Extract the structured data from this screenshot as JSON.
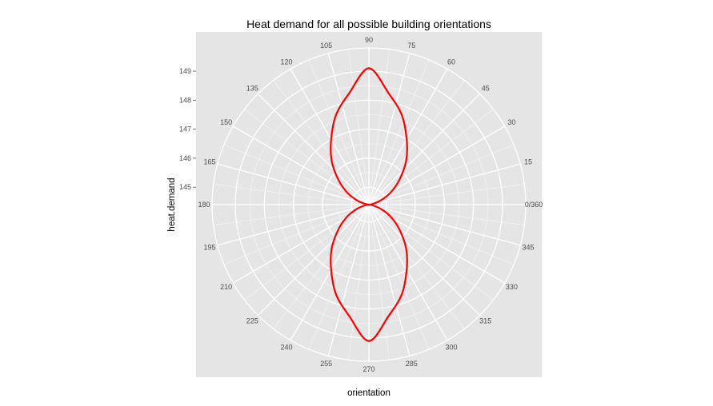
{
  "chart_data": {
    "type": "line",
    "coord": "polar",
    "title": "Heat demand for all possible building orientations",
    "xlabel": "orientation",
    "ylabel": "heat.demand",
    "angle_ticks": [
      "0/360",
      "15",
      "30",
      "45",
      "60",
      "75",
      "90",
      "105",
      "120",
      "135",
      "150",
      "165",
      "180",
      "195",
      "210",
      "225",
      "240",
      "255",
      "270",
      "285",
      "300",
      "315",
      "330",
      "345"
    ],
    "angle_tick_values": [
      0,
      15,
      30,
      45,
      60,
      75,
      90,
      105,
      120,
      135,
      150,
      165,
      180,
      195,
      210,
      225,
      240,
      255,
      270,
      285,
      300,
      315,
      330,
      345
    ],
    "radial_ticks": [
      145,
      146,
      147,
      148,
      149
    ],
    "radial_tick_labels": [
      "145",
      "146",
      "147",
      "148",
      "149"
    ],
    "rlim": [
      144.4,
      149.8
    ],
    "grid": true,
    "series": [
      {
        "color": "#ff0000",
        "x": [
          0,
          10,
          20,
          30,
          40,
          50,
          60,
          70,
          80,
          90,
          100,
          110,
          120,
          130,
          140,
          150,
          160,
          170,
          180,
          190,
          200,
          210,
          220,
          230,
          240,
          250,
          260,
          270,
          280,
          290,
          300,
          310,
          320,
          330,
          340,
          350,
          360
        ],
        "y": [
          144.4,
          144.52,
          144.85,
          145.3,
          145.8,
          146.4,
          147.0,
          147.7,
          148.3,
          149.1,
          148.3,
          147.7,
          147.0,
          146.4,
          145.8,
          145.3,
          144.85,
          144.52,
          144.4,
          144.52,
          144.85,
          145.3,
          145.8,
          146.4,
          147.0,
          147.7,
          148.3,
          149.1,
          148.3,
          147.7,
          147.0,
          146.4,
          145.8,
          145.3,
          144.85,
          144.52,
          144.4
        ]
      }
    ]
  }
}
